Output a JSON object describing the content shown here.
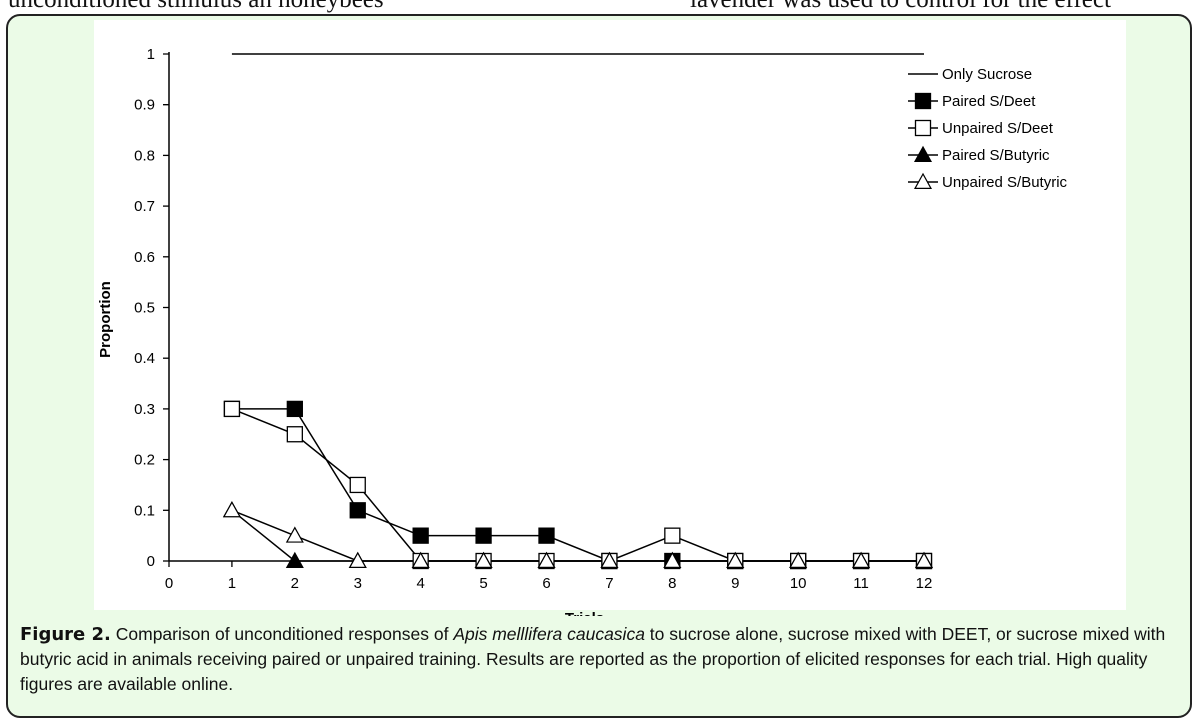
{
  "page": {
    "top_left_text": "unconditioned stimulus an honeybees",
    "top_right_text": "lavender was used to control for the effect"
  },
  "caption": {
    "label": "Figure 2.",
    "text_1": " Comparison of unconditioned responses of ",
    "species": "Apis melllifera caucasica",
    "text_2": " to sucrose alone, sucrose mixed with DEET, or sucrose mixed with butyric acid in animals receiving paired or unpaired training. Results are reported as the proportion of elicited responses for each trial. High quality figures are available online."
  },
  "colors": {
    "figure_background": "#ebfbe7",
    "plot_background": "#ffffff",
    "ink": "#000000"
  },
  "chart_data": {
    "type": "line",
    "xlabel": "Trials",
    "ylabel": "Proportion",
    "xlim": [
      0,
      12
    ],
    "ylim": [
      0,
      1
    ],
    "x_ticks": [
      0,
      1,
      2,
      3,
      4,
      5,
      6,
      7,
      8,
      9,
      10,
      11,
      12
    ],
    "y_ticks": [
      0,
      0.1,
      0.2,
      0.3,
      0.4,
      0.5,
      0.6,
      0.7,
      0.8,
      0.9,
      1
    ],
    "y_tick_labels": [
      "0",
      "0.1",
      "0.2",
      "0.3",
      "0.4",
      "0.5",
      "0.6",
      "0.7",
      "0.8",
      "0.9",
      "1"
    ],
    "legend_position": "top-right",
    "grid": false,
    "series": [
      {
        "name": "Only Sucrose",
        "marker": "none",
        "x": [
          1,
          12
        ],
        "y": [
          1,
          1
        ]
      },
      {
        "name": "Paired S/Deet",
        "marker": "filled-square",
        "x": [
          1,
          2,
          3,
          4,
          5,
          6,
          7,
          8,
          9,
          10,
          11,
          12
        ],
        "y": [
          0.3,
          0.3,
          0.1,
          0.05,
          0.05,
          0.05,
          0,
          0,
          0,
          0,
          0,
          0
        ]
      },
      {
        "name": "Unpaired S/Deet",
        "marker": "open-square",
        "x": [
          1,
          2,
          3,
          4,
          5,
          6,
          7,
          8,
          9,
          10,
          11,
          12
        ],
        "y": [
          0.3,
          0.25,
          0.15,
          0,
          0,
          0,
          0,
          0.05,
          0,
          0,
          0,
          0
        ]
      },
      {
        "name": "Paired S/Butyric",
        "marker": "filled-triangle",
        "x": [
          1,
          2,
          3,
          4,
          5,
          6,
          7,
          8,
          9,
          10,
          11,
          12
        ],
        "y": [
          0.1,
          0,
          0,
          0,
          0,
          0,
          0,
          0,
          0,
          0,
          0,
          0
        ]
      },
      {
        "name": "Unpaired S/Butyric",
        "marker": "open-triangle",
        "x": [
          1,
          2,
          3,
          4,
          5,
          6,
          7,
          8,
          9,
          10,
          11,
          12
        ],
        "y": [
          0.1,
          0.05,
          0,
          0,
          0,
          0,
          0,
          0,
          0,
          0,
          0,
          0
        ]
      }
    ]
  }
}
